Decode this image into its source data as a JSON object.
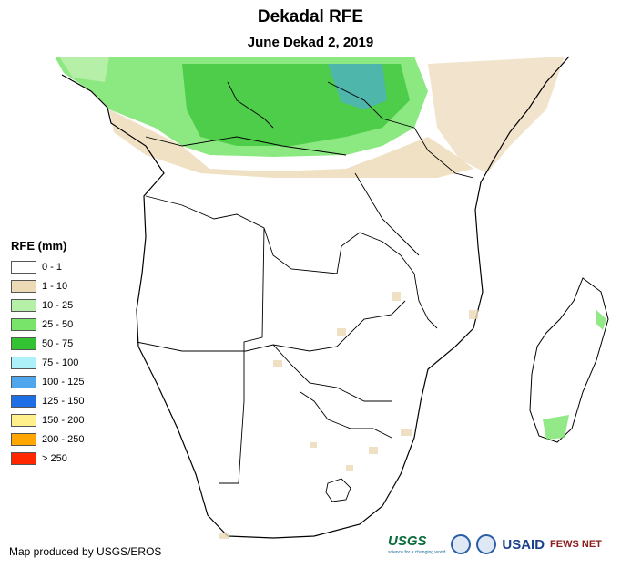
{
  "title": "Dekadal RFE",
  "subtitle": "June Dekad 2, 2019",
  "legend": {
    "title": "RFE (mm)",
    "items": [
      {
        "label": "0 - 1",
        "color": "#ffffff"
      },
      {
        "label": "1 - 10",
        "color": "#ecd9b6"
      },
      {
        "label": "10 - 25",
        "color": "#b6f0a8"
      },
      {
        "label": "25 - 50",
        "color": "#78e46a"
      },
      {
        "label": "50 - 75",
        "color": "#32c232"
      },
      {
        "label": "75 - 100",
        "color": "#aef0f8"
      },
      {
        "label": "100 - 125",
        "color": "#50a6ec"
      },
      {
        "label": "125 - 150",
        "color": "#1e6fe6"
      },
      {
        "label": "150 - 200",
        "color": "#fff08c"
      },
      {
        "label": "200 - 250",
        "color": "#ffa600"
      },
      {
        "label": "> 250",
        "color": "#ff2800"
      }
    ]
  },
  "credit": "Map produced by USGS/EROS",
  "logos": {
    "usgs": "USGS",
    "usgs_tagline": "science for a changing world",
    "usaid": "USAID",
    "fews": "FEWS NET"
  }
}
